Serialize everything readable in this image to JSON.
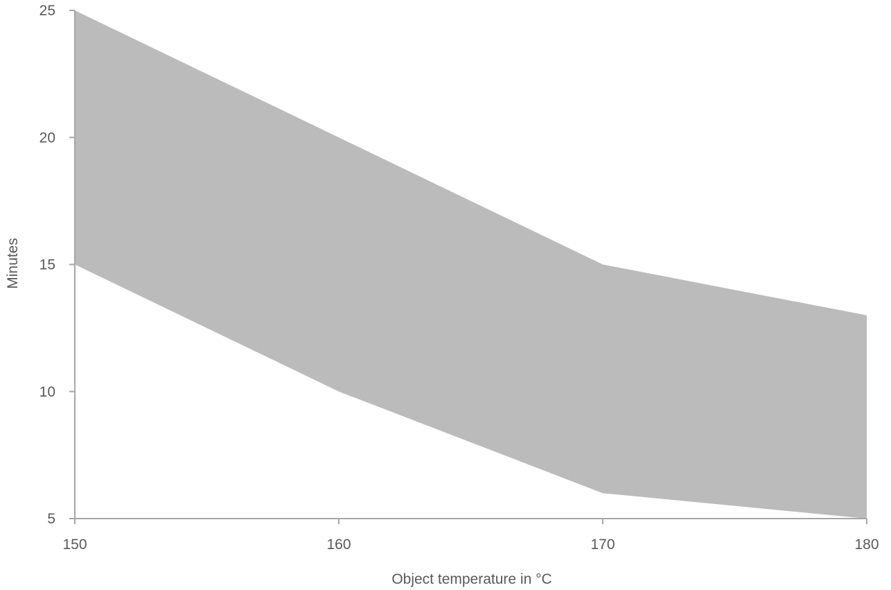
{
  "chart_data": {
    "type": "area",
    "title": "",
    "xlabel": "Object temperature in °C",
    "ylabel": "Minutes",
    "x": [
      150,
      160,
      170,
      180
    ],
    "series": [
      {
        "values_lower": [
          15,
          10,
          6,
          5
        ],
        "values_upper": [
          25,
          20,
          15,
          13
        ]
      }
    ],
    "xlim": [
      150,
      180
    ],
    "ylim": [
      5,
      25
    ],
    "xticks": [
      "150",
      "160",
      "170",
      "180"
    ],
    "yticks": [
      "5",
      "10",
      "15",
      "20",
      "25"
    ],
    "grid": false,
    "legend": "none",
    "colors": {
      "band": "#bbbbbb",
      "axis": "#a6a6a6",
      "text": "#595959"
    }
  }
}
